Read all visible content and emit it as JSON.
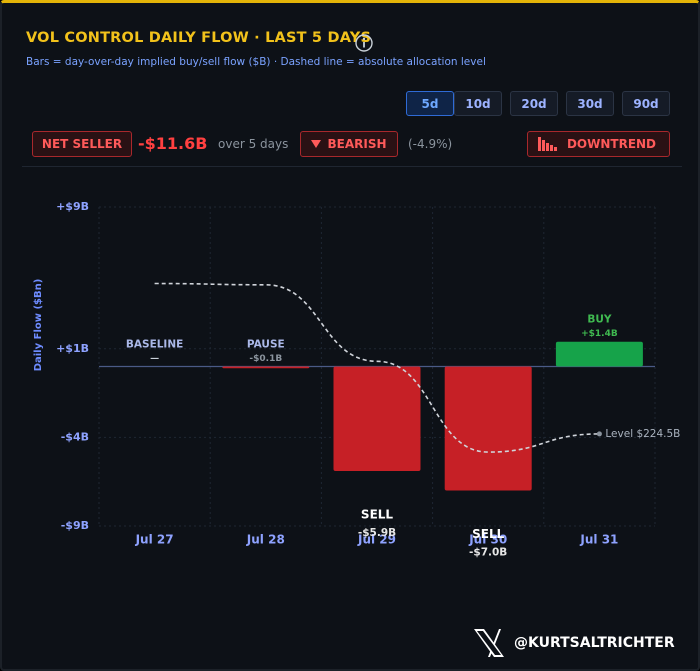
{
  "header": {
    "title": "VOL CONTROL DAILY FLOW · LAST 5 DAYS",
    "subtitle": "Bars = day-over-day implied buy/sell flow ($B) · Dashed line = absolute allocation level"
  },
  "controls": {
    "ranges": [
      "5d",
      "10d",
      "20d",
      "30d",
      "90d"
    ],
    "active": "5d"
  },
  "summary": {
    "status": "NET SELLER",
    "net_flow": "-$11.6B",
    "period": "over 5 days",
    "sentiment": "BEARISH",
    "change": "(-4.9%)",
    "trend": "DOWNTREND"
  },
  "chart_data": {
    "type": "bar",
    "y_label": "Daily Flow ($Bn)",
    "categories": [
      "Jul 27",
      "Jul 28",
      "Jul 29",
      "Jul 30",
      "Jul 31"
    ],
    "values": [
      0,
      -0.1,
      -5.9,
      -7.0,
      1.4
    ],
    "value_labels": [
      "—",
      "-$0.1B",
      "-$5.9B",
      "-$7.0B",
      "+$1.4B"
    ],
    "bar_tags": [
      "BASELINE",
      "PAUSE",
      "SELL",
      "SELL",
      "BUY"
    ],
    "colors": [
      "#8b949e",
      "#c62026",
      "#c62026",
      "#c62026",
      "#16a34a"
    ],
    "ylim": [
      -9,
      9
    ],
    "yticks": [
      {
        "value": 9,
        "label": "+$9B"
      },
      {
        "value": 1,
        "label": "+$1B"
      },
      {
        "value": -4,
        "label": "-$4B"
      },
      {
        "value": -9,
        "label": "-$9B"
      }
    ],
    "y2lim": [
      217.4,
      242
    ],
    "grid": true,
    "series": [
      {
        "type": "line",
        "axis": "y2",
        "color": "#d0d4da",
        "dashed": true,
        "values": [
          236.1,
          236.0,
          230.1,
          223.1,
          224.5
        ],
        "value_labels": [
          null,
          null,
          null,
          null,
          "Level $224.5B"
        ]
      }
    ]
  },
  "footer": {
    "handle": "@KURTSALTRICHTER"
  }
}
